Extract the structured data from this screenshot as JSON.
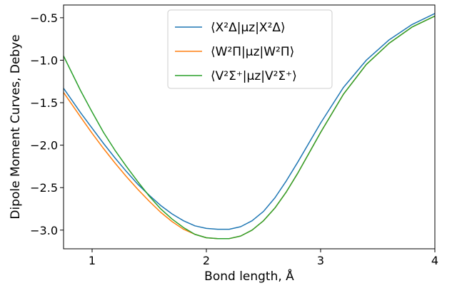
{
  "chart_data": {
    "type": "line",
    "title": "",
    "xlabel": "Bond length, Å",
    "ylabel": "Dipole Moment Curves, Debye",
    "xlim": [
      0.75,
      4.0
    ],
    "ylim": [
      -3.22,
      -0.35
    ],
    "xticks": [
      1,
      2,
      3,
      4
    ],
    "xtick_labels": [
      "1",
      "2",
      "3",
      "4"
    ],
    "yticks": [
      -3.0,
      -2.5,
      -2.0,
      -1.5,
      -1.0,
      -0.5
    ],
    "ytick_labels": [
      "−3.0",
      "−2.5",
      "−2.0",
      "−1.5",
      "−1.0",
      "−0.5"
    ],
    "grid": false,
    "legend_position": "top-center",
    "series": [
      {
        "name": "⟨X²Δ|μz|X²Δ⟩",
        "color": "#1f77b4",
        "x": [
          0.75,
          0.9,
          1.0,
          1.1,
          1.2,
          1.3,
          1.4,
          1.5,
          1.6,
          1.7,
          1.8,
          1.9,
          2.0,
          2.1,
          2.2,
          2.3,
          2.4,
          2.5,
          2.6,
          2.7,
          2.8,
          2.9,
          3.0,
          3.2,
          3.4,
          3.6,
          3.8,
          4.0
        ],
        "y": [
          -1.33,
          -1.62,
          -1.8,
          -1.98,
          -2.15,
          -2.31,
          -2.46,
          -2.59,
          -2.71,
          -2.81,
          -2.89,
          -2.95,
          -2.98,
          -2.99,
          -2.99,
          -2.96,
          -2.89,
          -2.78,
          -2.62,
          -2.42,
          -2.2,
          -1.97,
          -1.74,
          -1.32,
          -1.0,
          -0.76,
          -0.58,
          -0.45
        ]
      },
      {
        "name": "⟨W²Π|μz|W²Π⟩",
        "color": "#ff7f0e",
        "x": [
          0.75,
          0.9,
          1.0,
          1.1,
          1.2,
          1.3,
          1.4,
          1.5,
          1.6,
          1.7,
          1.8,
          1.9,
          2.0,
          2.1,
          2.2,
          2.3,
          2.4,
          2.5,
          2.6,
          2.7,
          2.8,
          2.9,
          3.0,
          3.2,
          3.4,
          3.6,
          3.8,
          4.0
        ],
        "y": [
          -1.38,
          -1.67,
          -1.86,
          -2.04,
          -2.21,
          -2.37,
          -2.52,
          -2.66,
          -2.79,
          -2.9,
          -2.99,
          -3.05,
          -3.09,
          -3.1,
          -3.1,
          -3.07,
          -3.0,
          -2.89,
          -2.74,
          -2.55,
          -2.33,
          -2.09,
          -1.85,
          -1.4,
          -1.05,
          -0.8,
          -0.61,
          -0.48
        ]
      },
      {
        "name": "⟨V²Σ⁺|μz|V²Σ⁺⟩",
        "color": "#2ca02c",
        "x": [
          0.75,
          0.9,
          1.0,
          1.1,
          1.2,
          1.3,
          1.4,
          1.5,
          1.6,
          1.7,
          1.8,
          1.9,
          2.0,
          2.1,
          2.2,
          2.3,
          2.4,
          2.5,
          2.6,
          2.7,
          2.8,
          2.9,
          3.0,
          3.2,
          3.4,
          3.6,
          3.8,
          4.0
        ],
        "y": [
          -0.95,
          -1.36,
          -1.61,
          -1.85,
          -2.06,
          -2.25,
          -2.43,
          -2.6,
          -2.75,
          -2.87,
          -2.97,
          -3.05,
          -3.09,
          -3.1,
          -3.1,
          -3.07,
          -3.0,
          -2.89,
          -2.74,
          -2.55,
          -2.33,
          -2.09,
          -1.85,
          -1.4,
          -1.05,
          -0.8,
          -0.61,
          -0.48
        ]
      }
    ]
  }
}
